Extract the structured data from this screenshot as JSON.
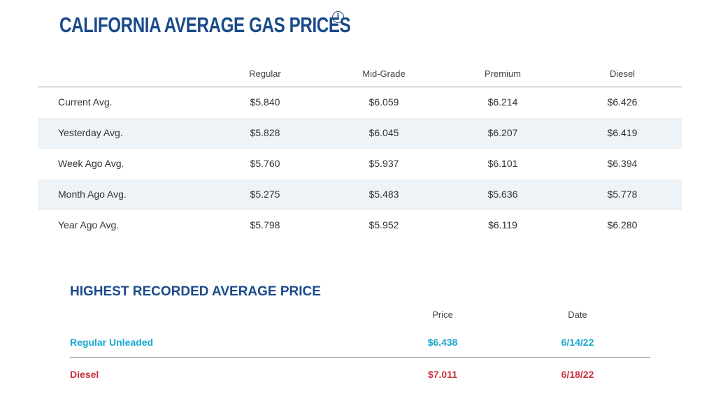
{
  "page": {
    "title": "CALIFORNIA AVERAGE GAS PRICES",
    "info_icon_glyph": "i"
  },
  "avg_table": {
    "headers": [
      "Regular",
      "Mid-Grade",
      "Premium",
      "Diesel"
    ],
    "rows": [
      {
        "label": "Current Avg.",
        "values": [
          "$5.840",
          "$6.059",
          "$6.214",
          "$6.426"
        ]
      },
      {
        "label": "Yesterday Avg.",
        "values": [
          "$5.828",
          "$6.045",
          "$6.207",
          "$6.419"
        ]
      },
      {
        "label": "Week Ago Avg.",
        "values": [
          "$5.760",
          "$5.937",
          "$6.101",
          "$6.394"
        ]
      },
      {
        "label": "Month Ago Avg.",
        "values": [
          "$5.275",
          "$5.483",
          "$5.636",
          "$5.778"
        ]
      },
      {
        "label": "Year Ago Avg.",
        "values": [
          "$5.798",
          "$5.952",
          "$6.119",
          "$6.280"
        ]
      }
    ]
  },
  "highest": {
    "title": "HIGHEST RECORDED AVERAGE PRICE",
    "headers": [
      "Price",
      "Date"
    ],
    "rows": [
      {
        "label": "Regular Unleaded",
        "price": "$6.438",
        "date": "6/14/22",
        "color": "#19a7cf"
      },
      {
        "label": "Diesel",
        "price": "$7.011",
        "date": "6/18/22",
        "color": "#c8323c"
      }
    ]
  },
  "colors": {
    "title": "#1a4a8a",
    "alt_row_bg": "#eef3f8",
    "regular_accent": "#19a7cf",
    "diesel_accent": "#c8323c"
  }
}
